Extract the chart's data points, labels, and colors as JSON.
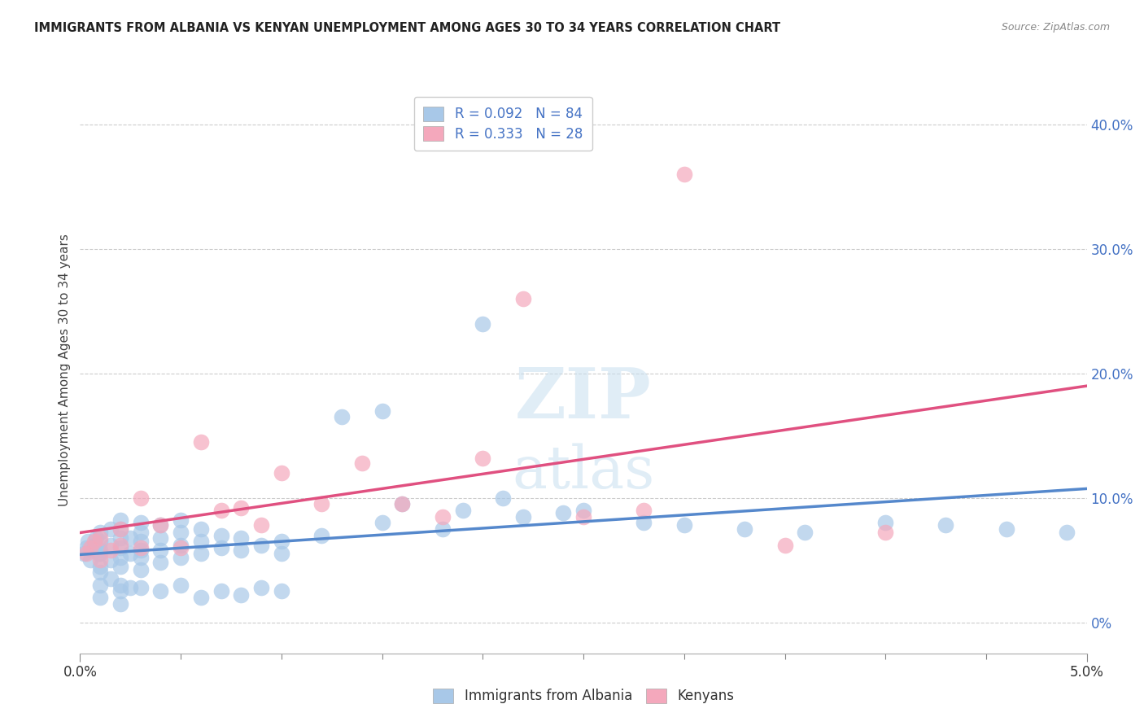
{
  "title": "IMMIGRANTS FROM ALBANIA VS KENYAN UNEMPLOYMENT AMONG AGES 30 TO 34 YEARS CORRELATION CHART",
  "source": "Source: ZipAtlas.com",
  "ylabel": "Unemployment Among Ages 30 to 34 years",
  "ylabel_right_vals": [
    0.0,
    0.1,
    0.2,
    0.3,
    0.4
  ],
  "ylabel_right_labels": [
    "0%",
    "10.0%",
    "20.0%",
    "30.0%",
    "40.0%"
  ],
  "xlim": [
    0.0,
    0.05
  ],
  "ylim": [
    -0.025,
    0.43
  ],
  "color_blue": "#a8c8e8",
  "color_pink": "#f4a8bc",
  "line_color_blue": "#5588cc",
  "line_color_pink": "#e05080",
  "background_color": "#ffffff",
  "blue_scatter_x": [
    0.0002,
    0.0003,
    0.0004,
    0.0005,
    0.0006,
    0.0007,
    0.0008,
    0.0009,
    0.001,
    0.001,
    0.001,
    0.001,
    0.001,
    0.001,
    0.001,
    0.001,
    0.0015,
    0.0015,
    0.0015,
    0.0015,
    0.002,
    0.002,
    0.002,
    0.002,
    0.002,
    0.002,
    0.002,
    0.002,
    0.002,
    0.0025,
    0.0025,
    0.0025,
    0.003,
    0.003,
    0.003,
    0.003,
    0.003,
    0.003,
    0.003,
    0.004,
    0.004,
    0.004,
    0.004,
    0.004,
    0.005,
    0.005,
    0.005,
    0.005,
    0.005,
    0.006,
    0.006,
    0.006,
    0.006,
    0.007,
    0.007,
    0.007,
    0.008,
    0.008,
    0.008,
    0.009,
    0.009,
    0.01,
    0.01,
    0.01,
    0.012,
    0.013,
    0.015,
    0.016,
    0.018,
    0.02,
    0.022,
    0.025,
    0.028,
    0.03,
    0.033,
    0.036,
    0.04,
    0.043,
    0.046,
    0.049,
    0.015,
    0.019,
    0.021,
    0.024
  ],
  "blue_scatter_y": [
    0.055,
    0.06,
    0.065,
    0.05,
    0.058,
    0.062,
    0.068,
    0.055,
    0.04,
    0.045,
    0.058,
    0.065,
    0.072,
    0.055,
    0.03,
    0.02,
    0.05,
    0.062,
    0.075,
    0.035,
    0.045,
    0.052,
    0.06,
    0.068,
    0.075,
    0.082,
    0.03,
    0.015,
    0.025,
    0.055,
    0.068,
    0.028,
    0.042,
    0.052,
    0.058,
    0.065,
    0.072,
    0.08,
    0.028,
    0.048,
    0.058,
    0.068,
    0.078,
    0.025,
    0.052,
    0.062,
    0.072,
    0.082,
    0.03,
    0.055,
    0.065,
    0.075,
    0.02,
    0.06,
    0.07,
    0.025,
    0.058,
    0.068,
    0.022,
    0.062,
    0.028,
    0.065,
    0.055,
    0.025,
    0.07,
    0.165,
    0.08,
    0.095,
    0.075,
    0.24,
    0.085,
    0.09,
    0.08,
    0.078,
    0.075,
    0.072,
    0.08,
    0.078,
    0.075,
    0.072,
    0.17,
    0.09,
    0.1,
    0.088
  ],
  "pink_scatter_x": [
    0.0003,
    0.0005,
    0.0007,
    0.001,
    0.001,
    0.0015,
    0.002,
    0.002,
    0.003,
    0.003,
    0.004,
    0.005,
    0.006,
    0.007,
    0.008,
    0.009,
    0.01,
    0.012,
    0.014,
    0.016,
    0.018,
    0.02,
    0.022,
    0.025,
    0.028,
    0.03,
    0.035,
    0.04
  ],
  "pink_scatter_y": [
    0.055,
    0.06,
    0.065,
    0.05,
    0.068,
    0.058,
    0.062,
    0.075,
    0.06,
    0.1,
    0.078,
    0.06,
    0.145,
    0.09,
    0.092,
    0.078,
    0.12,
    0.095,
    0.128,
    0.095,
    0.085,
    0.132,
    0.26,
    0.085,
    0.09,
    0.36,
    0.062,
    0.072
  ]
}
